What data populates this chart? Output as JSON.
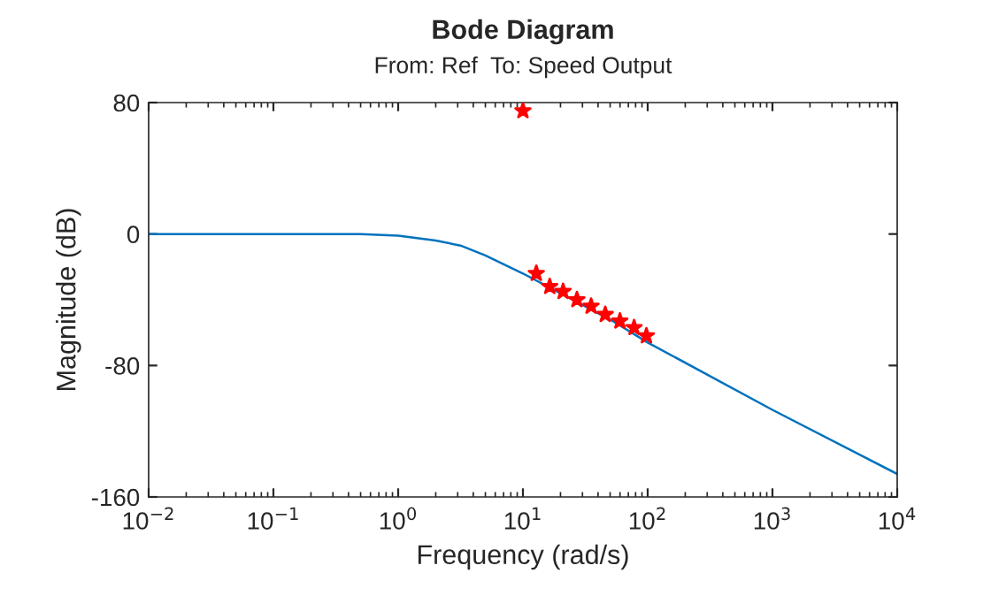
{
  "chart_data": {
    "type": "line",
    "title": "Bode Diagram",
    "subtitle": "From: Ref  To: Speed Output",
    "xlabel": "Frequency (rad/s)",
    "ylabel": "Magnitude (dB)",
    "log": "x",
    "grid": false,
    "series": [
      {
        "color": "#0072bd",
        "marker": "none",
        "x": [
          0.01,
          0.1,
          0.3,
          0.5,
          1,
          2,
          3.16,
          5,
          10,
          20,
          50,
          100,
          1000,
          10000
        ],
        "values": [
          0,
          0,
          0,
          0,
          -1,
          -4,
          -7,
          -13,
          -24,
          -36,
          -52,
          -66,
          -107,
          -146
        ]
      },
      {
        "type": "scatter",
        "color": "#ff0000",
        "marker": "star",
        "x": [
          10,
          12.8,
          16.4,
          21.0,
          27.1,
          35.2,
          45.7,
          59.9,
          77.8,
          97.7
        ],
        "values": [
          75,
          -24,
          -32,
          -35,
          -40,
          -44,
          -49,
          -53,
          -57,
          -62
        ]
      }
    ],
    "xlim": [
      0.01,
      10000
    ],
    "xticks": [
      {
        "value": 0.01,
        "label": "10$^{−2}$"
      },
      {
        "value": 0.1,
        "label": "10$^{−1}$"
      },
      {
        "value": 1,
        "label": "10$^{0}$"
      },
      {
        "value": 10,
        "label": "10$^{1}$"
      },
      {
        "value": 100,
        "label": "10$^{2}$"
      },
      {
        "value": 1000,
        "label": "10$^{3}$"
      },
      {
        "value": 10000,
        "label": "10$^{4}$"
      }
    ],
    "ylim": [
      -160,
      80
    ],
    "yticks": [
      -160,
      -80,
      0,
      80
    ]
  }
}
